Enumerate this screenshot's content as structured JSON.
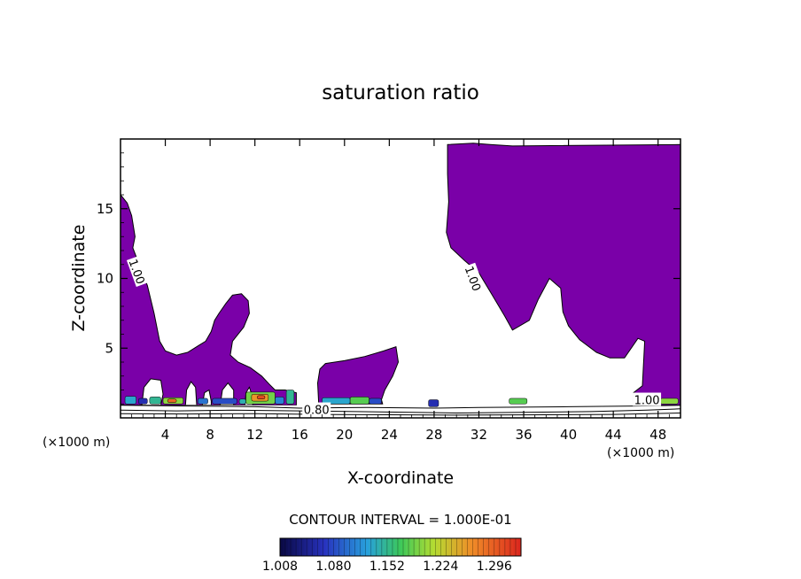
{
  "chart_data": {
    "type": "heatmap",
    "title": "saturation ratio",
    "xlabel": "X-coordinate",
    "ylabel": "Z-coordinate",
    "x_unit": "(×1000 m)",
    "z_unit": "(×1000 m)",
    "xlim": [
      0,
      50
    ],
    "ylim": [
      0,
      20
    ],
    "x_ticks": [
      4,
      8,
      12,
      16,
      20,
      24,
      28,
      32,
      36,
      40,
      44,
      48
    ],
    "y_ticks": [
      5,
      10,
      15
    ],
    "contour_interval_text": "CONTOUR INTERVAL = 1.000E-01",
    "contour_labels": [
      {
        "text": "1.00",
        "x": 1.5,
        "z": 10.5
      },
      {
        "text": "1.00",
        "x": 31.5,
        "z": 10.0
      },
      {
        "text": "0.80",
        "x": 17.5,
        "z": 0.6
      },
      {
        "text": "1.00",
        "x": 47.0,
        "z": 1.3
      }
    ],
    "colorbar_ticks": [
      "1.008",
      "1.080",
      "1.152",
      "1.224",
      "1.296"
    ],
    "colorbar_range": [
      1.008,
      1.332
    ],
    "saturated_color": "#7a00a8",
    "regions": [
      {
        "name": "left-plume",
        "points": [
          [
            0,
            16
          ],
          [
            0.6,
            15.4
          ],
          [
            1,
            14.5
          ],
          [
            1.3,
            13
          ],
          [
            1.1,
            12.2
          ],
          [
            1.9,
            10.5
          ],
          [
            2.4,
            9.5
          ],
          [
            3,
            7.5
          ],
          [
            3.5,
            5.5
          ],
          [
            4,
            4.8
          ],
          [
            5,
            4.5
          ],
          [
            6,
            4.7
          ],
          [
            7,
            5.2
          ],
          [
            7.6,
            5.5
          ],
          [
            8.1,
            6.2
          ],
          [
            8.4,
            7
          ],
          [
            8.8,
            7.5
          ],
          [
            9.4,
            8.2
          ],
          [
            10,
            8.8
          ],
          [
            10.8,
            8.9
          ],
          [
            11.4,
            8.4
          ],
          [
            11.5,
            7.5
          ],
          [
            11,
            6.5
          ],
          [
            10,
            5.5
          ],
          [
            9.8,
            4.5
          ],
          [
            10.5,
            4
          ],
          [
            11.6,
            3.6
          ],
          [
            12.6,
            3
          ],
          [
            13.3,
            2.4
          ],
          [
            13.8,
            2
          ],
          [
            14.7,
            2
          ],
          [
            15.7,
            1.8
          ],
          [
            15.7,
            0.9
          ],
          [
            0,
            0.9
          ]
        ]
      },
      {
        "name": "center-blob",
        "points": [
          [
            17.7,
            1
          ],
          [
            17.6,
            2.5
          ],
          [
            17.8,
            3.5
          ],
          [
            18.3,
            3.9
          ],
          [
            20,
            4.1
          ],
          [
            21.8,
            4.4
          ],
          [
            23.5,
            4.8
          ],
          [
            24.6,
            5.1
          ],
          [
            24.8,
            4
          ],
          [
            24.3,
            3
          ],
          [
            23.6,
            2
          ],
          [
            23.3,
            1.3
          ],
          [
            23.4,
            1
          ],
          [
            17.7,
            1
          ]
        ]
      },
      {
        "name": "right-plume",
        "points": [
          [
            29.2,
            19.6
          ],
          [
            31.5,
            19.7
          ],
          [
            33,
            19.6
          ],
          [
            35,
            19.5
          ],
          [
            50,
            19.6
          ],
          [
            50,
            0.9
          ],
          [
            45.8,
            0.9
          ],
          [
            45.8,
            1.8
          ],
          [
            46.6,
            2.3
          ],
          [
            46.8,
            5.5
          ],
          [
            46.2,
            5.7
          ],
          [
            45,
            4.3
          ],
          [
            43.7,
            4.3
          ],
          [
            42.5,
            4.7
          ],
          [
            41,
            5.6
          ],
          [
            40,
            6.6
          ],
          [
            39.5,
            7.6
          ],
          [
            39.3,
            9.3
          ],
          [
            38.3,
            10
          ],
          [
            37.3,
            8.5
          ],
          [
            36.5,
            7
          ],
          [
            35,
            6.3
          ],
          [
            34.3,
            7.3
          ],
          [
            33.2,
            8.8
          ],
          [
            32,
            10.4
          ],
          [
            30.7,
            11.3
          ],
          [
            29.5,
            12.2
          ],
          [
            29.1,
            13.3
          ],
          [
            29.3,
            15.5
          ],
          [
            29.2,
            17.5
          ]
        ]
      }
    ],
    "holes": [
      {
        "name": "hole-1",
        "points": [
          [
            1.9,
            0.9
          ],
          [
            2.1,
            2.2
          ],
          [
            2.7,
            2.8
          ],
          [
            3.6,
            2.7
          ],
          [
            3.8,
            1.7
          ],
          [
            3.6,
            0.9
          ]
        ]
      },
      {
        "name": "hole-2",
        "points": [
          [
            5.8,
            0.9
          ],
          [
            5.9,
            2
          ],
          [
            6.3,
            2.6
          ],
          [
            6.7,
            2.2
          ],
          [
            6.8,
            0.9
          ]
        ]
      },
      {
        "name": "hole-3",
        "points": [
          [
            7.3,
            0.9
          ],
          [
            7.5,
            1.8
          ],
          [
            7.9,
            2
          ],
          [
            8.1,
            1.2
          ],
          [
            8.1,
            0.9
          ]
        ]
      },
      {
        "name": "hole-4",
        "points": [
          [
            8.9,
            0.9
          ],
          [
            9.1,
            2
          ],
          [
            9.6,
            2.5
          ],
          [
            10.1,
            2
          ],
          [
            10.1,
            0.9
          ]
        ]
      },
      {
        "name": "hole-5",
        "points": [
          [
            11.1,
            0.9
          ],
          [
            11.2,
            1.8
          ],
          [
            11.5,
            2.2
          ],
          [
            11.8,
            1.5
          ],
          [
            11.8,
            0.9
          ]
        ]
      }
    ],
    "saturated_cells": [
      {
        "x": [
          0.4,
          1.4
        ],
        "z": [
          1.0,
          1.55
        ],
        "value": 1.13
      },
      {
        "x": [
          1.6,
          2.4
        ],
        "z": [
          1.0,
          1.4
        ],
        "value": 1.06
      },
      {
        "x": [
          2.6,
          3.6
        ],
        "z": [
          1.0,
          1.5
        ],
        "value": 1.15
      },
      {
        "x": [
          3.8,
          5.6
        ],
        "z": [
          1.0,
          1.45
        ],
        "value": 1.2
      },
      {
        "x": [
          4.2,
          5.0
        ],
        "z": [
          1.1,
          1.35
        ],
        "value": 1.29
      },
      {
        "x": [
          6.9,
          7.8
        ],
        "z": [
          1.0,
          1.4
        ],
        "value": 1.1
      },
      {
        "x": [
          8.2,
          10.4
        ],
        "z": [
          1.0,
          1.4
        ],
        "value": 1.08
      },
      {
        "x": [
          10.6,
          11.2
        ],
        "z": [
          1.0,
          1.35
        ],
        "value": 1.14
      },
      {
        "x": [
          11.2,
          13.8
        ],
        "z": [
          1.0,
          1.85
        ],
        "value": 1.19
      },
      {
        "x": [
          11.7,
          13.2
        ],
        "z": [
          1.2,
          1.7
        ],
        "value": 1.26
      },
      {
        "x": [
          12.2,
          12.9
        ],
        "z": [
          1.35,
          1.6
        ],
        "value": 1.31
      },
      {
        "x": [
          13.8,
          14.6
        ],
        "z": [
          1.0,
          1.5
        ],
        "value": 1.11
      },
      {
        "x": [
          14.8,
          15.5
        ],
        "z": [
          1.0,
          2.0
        ],
        "value": 1.15
      },
      {
        "x": [
          18.0,
          20.5
        ],
        "z": [
          1.0,
          1.45
        ],
        "value": 1.13
      },
      {
        "x": [
          20.5,
          22.2
        ],
        "z": [
          1.0,
          1.5
        ],
        "value": 1.18
      },
      {
        "x": [
          22.2,
          23.3
        ],
        "z": [
          1.0,
          1.4
        ],
        "value": 1.08
      },
      {
        "x": [
          27.5,
          28.4
        ],
        "z": [
          0.8,
          1.3
        ],
        "value": 1.06
      },
      {
        "x": [
          34.7,
          36.3
        ],
        "z": [
          1.0,
          1.4
        ],
        "value": 1.18
      },
      {
        "x": [
          46.0,
          47.5
        ],
        "z": [
          1.0,
          1.4
        ],
        "value": 1.12
      },
      {
        "x": [
          48.2,
          49.8
        ],
        "z": [
          1.0,
          1.4
        ],
        "value": 1.2
      }
    ],
    "surface_contours": [
      [
        [
          0,
          0.9
        ],
        [
          6,
          0.85
        ],
        [
          12,
          0.8
        ],
        [
          16,
          0.7
        ],
        [
          22,
          0.75
        ],
        [
          28,
          0.7
        ],
        [
          32,
          0.75
        ],
        [
          40,
          0.8
        ],
        [
          46,
          0.85
        ],
        [
          50,
          0.9
        ]
      ],
      [
        [
          0,
          0.55
        ],
        [
          5,
          0.5
        ],
        [
          10,
          0.55
        ],
        [
          16,
          0.5
        ],
        [
          21,
          0.45
        ],
        [
          26,
          0.4
        ],
        [
          30,
          0.35
        ],
        [
          36,
          0.4
        ],
        [
          42,
          0.45
        ],
        [
          47,
          0.55
        ],
        [
          50,
          0.65
        ]
      ],
      [
        [
          0,
          0.3
        ],
        [
          6,
          0.28
        ],
        [
          12,
          0.3
        ],
        [
          18,
          0.25
        ],
        [
          24,
          0.22
        ],
        [
          30,
          0.2
        ],
        [
          38,
          0.22
        ],
        [
          44,
          0.25
        ],
        [
          50,
          0.35
        ]
      ]
    ]
  }
}
